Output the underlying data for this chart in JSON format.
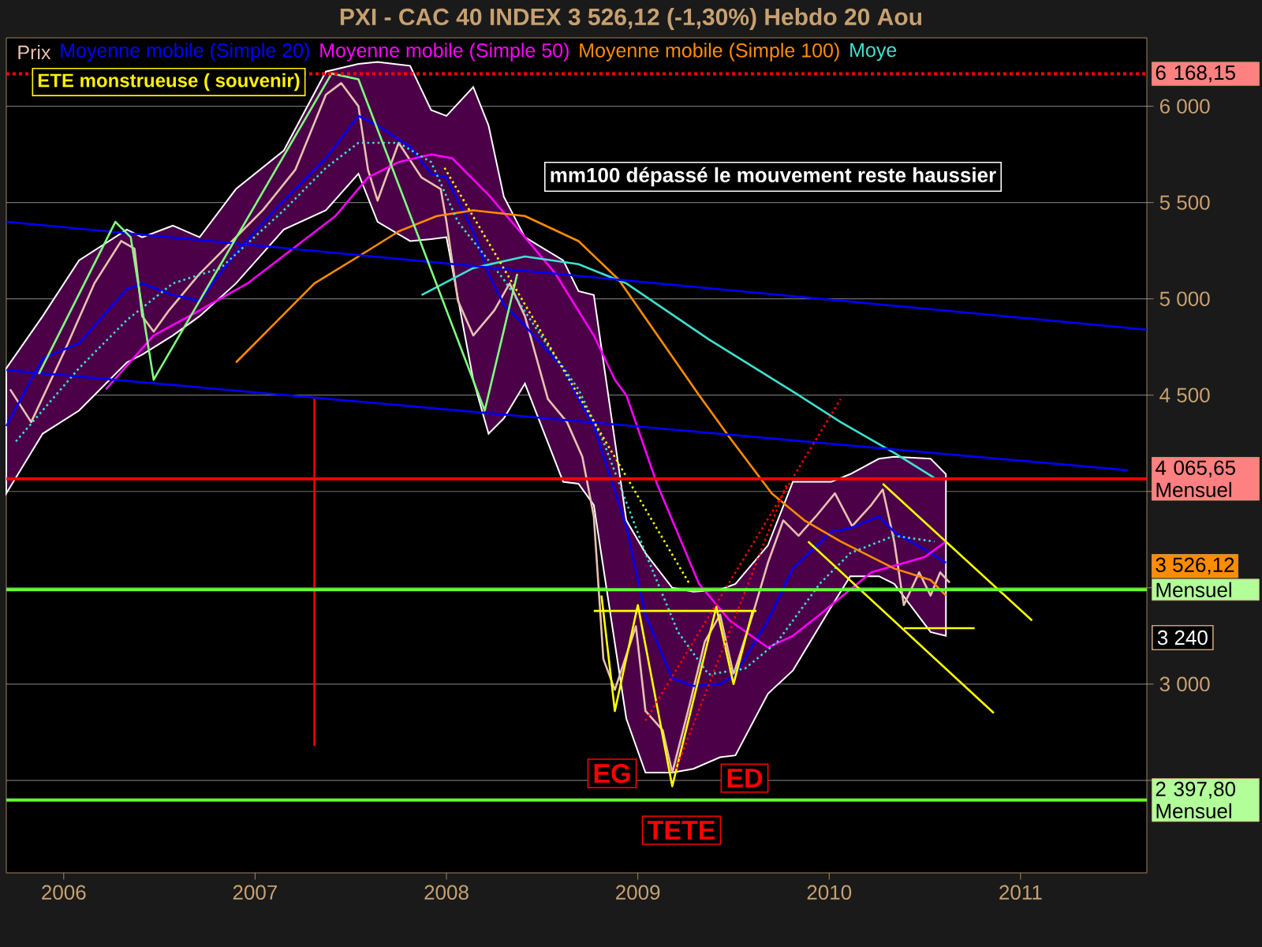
{
  "chart_data": {
    "type": "line",
    "title": "PXI - CAC 40 INDEX    3 526,12 (-1,30%)    Hebdo  20 Aou",
    "xlim": [
      2005.7,
      2011.66
    ],
    "ylim": [
      2020,
      6355
    ],
    "xticks": [
      2006,
      2007,
      2008,
      2009,
      2010,
      2011
    ],
    "yticks": [
      {
        "value": 2500,
        "label": null
      },
      {
        "value": 3000,
        "label": "3 000"
      },
      {
        "value": 3500,
        "label": null
      },
      {
        "value": 4000,
        "label": null
      },
      {
        "value": 4500,
        "label": "4 500"
      },
      {
        "value": 5000,
        "label": "5 000"
      },
      {
        "value": 5500,
        "label": "5 500"
      },
      {
        "value": 6000,
        "label": "6 000"
      }
    ],
    "grid": "y",
    "legend": "top",
    "series": [
      {
        "name": "Prix",
        "color": "#e8c0b0",
        "line_style": "solid",
        "x": [
          2005.72,
          2005.83,
          2006.0,
          2006.16,
          2006.3,
          2006.37,
          2006.41,
          2006.47,
          2006.55,
          2006.71,
          2006.88,
          2007.04,
          2007.21,
          2007.37,
          2007.45,
          2007.54,
          2007.59,
          2007.64,
          2007.75,
          2007.87,
          2007.97,
          2008.0,
          2008.06,
          2008.14,
          2008.25,
          2008.33,
          2008.41,
          2008.53,
          2008.63,
          2008.71,
          2008.77,
          2008.82,
          2008.88,
          2008.99,
          2009.04,
          2009.13,
          2009.18,
          2009.27,
          2009.35,
          2009.43,
          2009.5,
          2009.6,
          2009.68,
          2009.76,
          2009.84,
          2009.93,
          2010.03,
          2010.12,
          2010.22,
          2010.28,
          2010.34,
          2010.39,
          2010.47,
          2010.53,
          2010.58,
          2010.63
        ],
        "values": [
          4530,
          4360,
          4720,
          5080,
          5300,
          5260,
          4910,
          4830,
          4940,
          5130,
          5300,
          5460,
          5670,
          6060,
          6120,
          6000,
          5670,
          5510,
          5810,
          5630,
          5570,
          5400,
          4990,
          4810,
          4940,
          5080,
          4910,
          4480,
          4360,
          4180,
          3870,
          3130,
          2970,
          3300,
          2860,
          2760,
          2540,
          2890,
          3220,
          3360,
          3050,
          3360,
          3630,
          3850,
          3770,
          3870,
          3990,
          3820,
          3930,
          4010,
          3740,
          3410,
          3580,
          3460,
          3580,
          3526.12
        ]
      },
      {
        "name": "Moyenne mobile (Simple 20)",
        "color": "#0000ff",
        "line_style": "solid",
        "x": [
          2005.7,
          2005.89,
          2006.08,
          2006.33,
          2006.41,
          2006.57,
          2006.71,
          2006.9,
          2007.15,
          2007.37,
          2007.54,
          2007.64,
          2007.81,
          2007.92,
          2008.0,
          2008.14,
          2008.22,
          2008.3,
          2008.41,
          2008.61,
          2008.69,
          2008.77,
          2008.94,
          2009.04,
          2009.18,
          2009.29,
          2009.43,
          2009.51,
          2009.68,
          2009.81,
          2010.01,
          2010.11,
          2010.26,
          2010.34,
          2010.53,
          2010.61
        ],
        "values": [
          4340,
          4690,
          4770,
          5050,
          5080,
          5020,
          4990,
          5240,
          5510,
          5730,
          5950,
          5900,
          5790,
          5650,
          5630,
          5350,
          5130,
          4970,
          4860,
          4640,
          4480,
          4340,
          3820,
          3360,
          3030,
          2990,
          3000,
          3050,
          3330,
          3600,
          3790,
          3810,
          3870,
          3790,
          3680,
          3630
        ],
        "upper": [
          4640,
          4910,
          5200,
          5360,
          5320,
          5380,
          5320,
          5570,
          5770,
          6180,
          6220,
          6230,
          6210,
          5980,
          5950,
          6100,
          5900,
          5530,
          5320,
          5200,
          5040,
          5020,
          3850,
          3680,
          3500,
          3480,
          3490,
          3520,
          3720,
          4050,
          4050,
          4090,
          4170,
          4180,
          4170,
          4090
        ],
        "lower": [
          3990,
          4300,
          4420,
          4670,
          4710,
          4810,
          4910,
          5080,
          5360,
          5460,
          5650,
          5400,
          5300,
          5310,
          5320,
          4580,
          4300,
          4380,
          4560,
          4050,
          4040,
          3930,
          2820,
          2540,
          2540,
          2560,
          2620,
          2630,
          2950,
          3070,
          3400,
          3560,
          3560,
          3520,
          3270,
          3250
        ]
      },
      {
        "name": "Moyenne mobile (Simple 50)",
        "color": "#ff00ff",
        "line_style": "solid",
        "x": [
          2006.22,
          2006.47,
          2006.71,
          2006.96,
          2007.21,
          2007.42,
          2007.59,
          2007.75,
          2007.92,
          2008.03,
          2008.22,
          2008.41,
          2008.57,
          2008.77,
          2008.88,
          2008.94,
          2009.1,
          2009.32,
          2009.48,
          2009.68,
          2009.81,
          2009.95,
          2010.22,
          2010.5,
          2010.61
        ],
        "values": [
          4530,
          4810,
          4940,
          5080,
          5270,
          5430,
          5630,
          5710,
          5750,
          5730,
          5540,
          5320,
          5130,
          4810,
          4580,
          4500,
          4040,
          3520,
          3330,
          3190,
          3250,
          3360,
          3580,
          3660,
          3740
        ]
      },
      {
        "name": "Moyenne mobile (Simple 100)",
        "color": "#ff8c00",
        "line_style": "solid",
        "x": [
          2006.9,
          2007.09,
          2007.31,
          2007.54,
          2007.75,
          2007.95,
          2008.14,
          2008.41,
          2008.69,
          2008.9,
          2009.32,
          2009.48,
          2009.7,
          2009.87,
          2010.06,
          2010.34,
          2010.53,
          2010.61
        ],
        "values": [
          4670,
          4860,
          5080,
          5220,
          5350,
          5430,
          5460,
          5430,
          5300,
          5100,
          4500,
          4280,
          3990,
          3850,
          3740,
          3600,
          3540,
          3460
        ]
      },
      {
        "name": "Moye",
        "color": "#40e0d0",
        "line_style": "solid",
        "x": [
          2007.87,
          2008.14,
          2008.41,
          2008.69,
          2008.94,
          2009.37,
          2009.84,
          2010.06,
          2010.34,
          2010.55
        ],
        "values": [
          5020,
          5160,
          5220,
          5180,
          5080,
          4790,
          4500,
          4360,
          4200,
          4070
        ]
      },
      {
        "color": "#40e0d0",
        "line_style": "dotted",
        "x": [
          2005.75,
          2006.08,
          2006.33,
          2006.57,
          2006.82,
          2007.15,
          2007.37,
          2007.54,
          2007.75,
          2007.92,
          2008.06,
          2008.3,
          2008.52,
          2008.69,
          2008.82,
          2009.04,
          2009.21,
          2009.37,
          2009.56,
          2009.73,
          2009.95,
          2010.11,
          2010.34,
          2010.55
        ],
        "values": [
          4260,
          4640,
          4890,
          5080,
          5160,
          5460,
          5680,
          5810,
          5810,
          5710,
          5400,
          5100,
          4770,
          4530,
          4260,
          3680,
          3270,
          3050,
          3080,
          3220,
          3520,
          3680,
          3770,
          3740
        ]
      },
      {
        "color": "#0000ff",
        "line_style": "solid",
        "x": [
          2005.7,
          2011.66
        ],
        "values": [
          5400,
          4840
        ]
      },
      {
        "color": "#0000ff",
        "line_style": "solid",
        "x": [
          2005.7,
          2011.56
        ],
        "values": [
          4630,
          4110
        ]
      },
      {
        "color": "#80ff80",
        "line_style": "solid",
        "x": [
          2005.87,
          2006.27,
          2006.35,
          2006.47,
          2007.4,
          2007.54,
          2008.2,
          2008.37
        ],
        "values": [
          4610,
          5400,
          5320,
          4580,
          6170,
          6140,
          4420,
          5130
        ]
      },
      {
        "color": "#ffff00",
        "line_style": "solid",
        "x": [
          2008.81,
          2008.88,
          2009.0,
          2009.18,
          2009.41,
          2009.5,
          2009.6
        ],
        "values": [
          3460,
          2860,
          3410,
          2470,
          3400,
          3000,
          3380
        ]
      },
      {
        "color": "#ffff00",
        "line_style": "solid",
        "x": [
          2008.77,
          2009.62
        ],
        "values": [
          3380,
          3380
        ]
      },
      {
        "color": "#ffff00",
        "line_style": "solid",
        "x": [
          2010.28,
          2011.06
        ],
        "values": [
          4040,
          3330
        ]
      },
      {
        "color": "#ffff00",
        "line_style": "solid",
        "x": [
          2009.89,
          2010.86
        ],
        "values": [
          3740,
          2850
        ]
      },
      {
        "color": "#ffff00",
        "line_style": "solid",
        "x": [
          2010.39,
          2010.76
        ],
        "values": [
          3290,
          3290
        ]
      },
      {
        "color": "#ffff00",
        "line_style": "dotted",
        "x": [
          2007.99,
          2009.27
        ],
        "values": [
          5680,
          3520
        ]
      },
      {
        "color": "#ff0000",
        "line_style": "dotted",
        "x": [
          2009.04,
          2010.06
        ],
        "values": [
          2810,
          4480
        ]
      },
      {
        "color": "#ff0000",
        "line_style": "dotted",
        "x": [
          2009.2,
          2009.78
        ],
        "values": [
          2560,
          4040
        ]
      },
      {
        "color": "#ff0000",
        "line_style": "solid",
        "x": [
          2007.31,
          2007.31
        ],
        "values": [
          4480,
          2680
        ]
      }
    ],
    "ref_lines": [
      {
        "axis": "y",
        "value": 6168.15,
        "label": "6 168,15",
        "color": "#ff0000",
        "line_style": "dotted"
      },
      {
        "axis": "y",
        "value": 4065.65,
        "label": "4 065,65 Mensuel",
        "color": "#ff0000",
        "line_style": "solid"
      },
      {
        "axis": "y",
        "value": 3490,
        "label": "Mensuel",
        "color": "#66ff33",
        "line_style": "solid"
      },
      {
        "axis": "y",
        "value": 2397.8,
        "label": "2 397,80 Mensuel",
        "color": "#66ff33",
        "line_style": "solid"
      }
    ],
    "annotations": [
      "ETE monstrueuse ( souvenir)",
      "mm100 dépassé  le mouvement reste haussier",
      "EG",
      "TETE",
      "ED",
      {
        "text": "3 526,12",
        "x": 2011.66,
        "y": 3526.12
      },
      "3 240"
    ]
  }
}
